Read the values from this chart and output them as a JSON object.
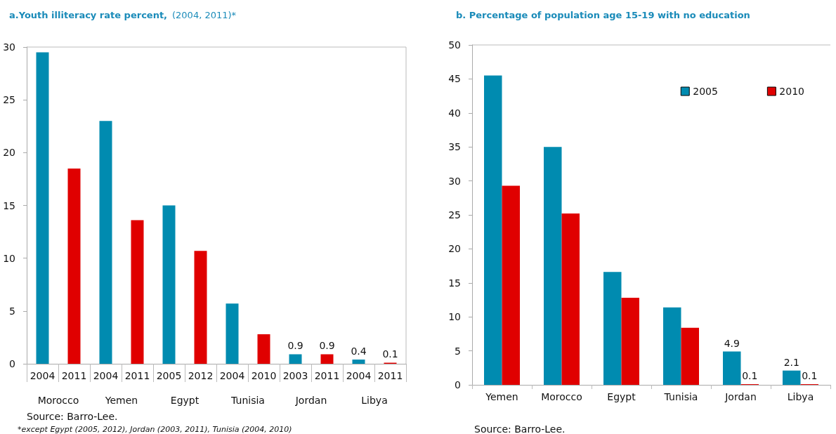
{
  "chart_data": [
    {
      "type": "bar",
      "title": "a.Youth illiteracy rate percent,",
      "subtitle": "(2004, 2011)*",
      "categories": [
        "2004",
        "2011",
        "2004",
        "2011",
        "2005",
        "2012",
        "2004",
        "2010",
        "2003",
        "2011",
        "2004",
        "2011"
      ],
      "values": [
        29.5,
        18.5,
        23.0,
        13.6,
        15.0,
        10.7,
        5.7,
        2.8,
        0.9,
        0.9,
        0.4,
        0.1
      ],
      "colors": [
        "#008bb0",
        "#e00000",
        "#008bb0",
        "#e00000",
        "#008bb0",
        "#e00000",
        "#008bb0",
        "#e00000",
        "#008bb0",
        "#e00000",
        "#008bb0",
        "#e00000"
      ],
      "value_labels": [
        null,
        null,
        null,
        null,
        null,
        null,
        null,
        null,
        "0.9",
        "0.9",
        "0.4",
        "0.1"
      ],
      "ylim": [
        0,
        30
      ],
      "yticks": [
        0,
        5,
        10,
        15,
        20,
        25,
        30
      ],
      "grid": false,
      "legend": false,
      "annotations": [
        "Morocco",
        "Yemen",
        "Egypt",
        "Tunisia",
        "Jordan",
        "Libya",
        "Source: Barro-Lee.",
        "*except Egypt (2005, 2012), Jordan (2003, 2011), Tunisia (2004, 2010)"
      ]
    },
    {
      "type": "bar",
      "title": "b. Percentage of population age 15-19 with no education",
      "categories": [
        "Yemen",
        "Morocco",
        "Egypt",
        "Tunisia",
        "Jordan",
        "Libya"
      ],
      "series": [
        {
          "name": "2005",
          "color": "#008bb0",
          "values": [
            45.5,
            35.0,
            16.6,
            11.4,
            4.9,
            2.1
          ],
          "value_labels": [
            null,
            null,
            null,
            null,
            "4.9",
            "2.1"
          ]
        },
        {
          "name": "2010",
          "color": "#e00000",
          "values": [
            29.3,
            25.2,
            12.8,
            8.4,
            0.1,
            0.1
          ],
          "value_labels": [
            null,
            null,
            null,
            null,
            "0.1",
            "0.1"
          ]
        }
      ],
      "ylim": [
        0,
        50
      ],
      "yticks": [
        0,
        5,
        10,
        15,
        20,
        25,
        30,
        35,
        40,
        45,
        50
      ],
      "grid": false,
      "legend": "top right",
      "annotations": [
        "Source: Barro-Lee."
      ]
    }
  ]
}
